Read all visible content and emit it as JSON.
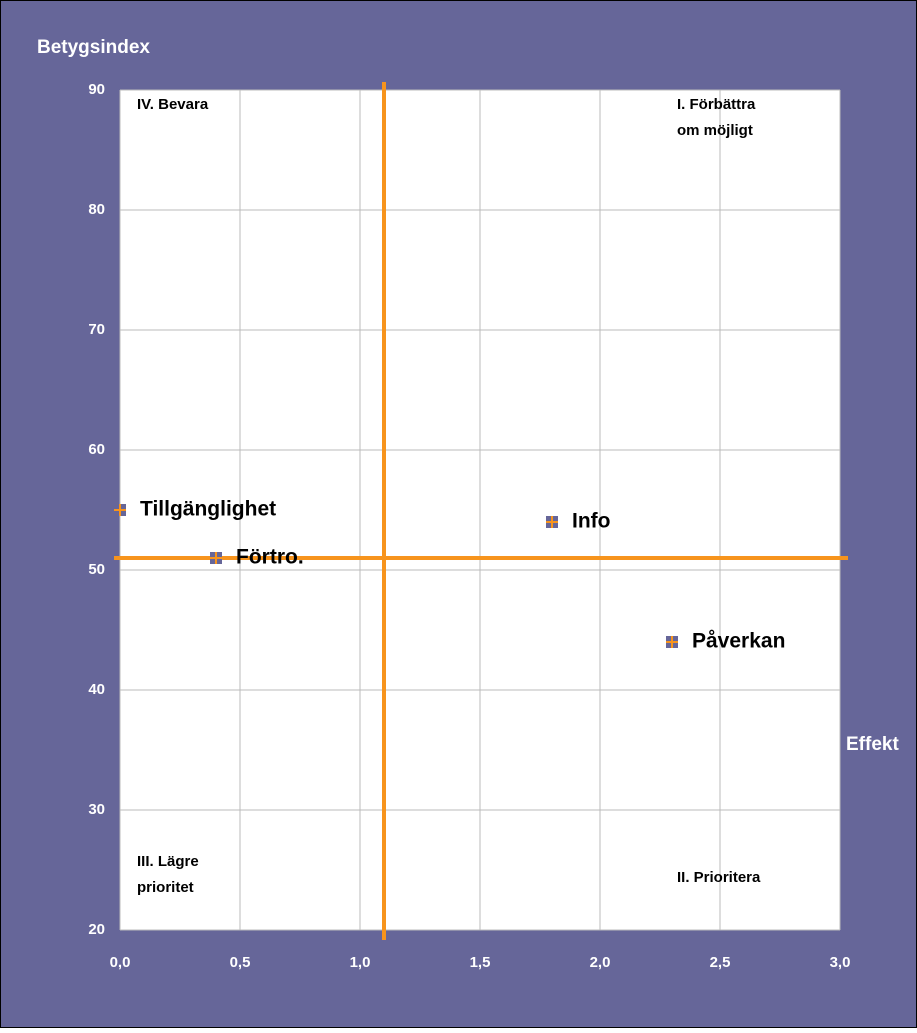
{
  "chart_data": {
    "type": "scatter",
    "y_label": "Betygsindex",
    "x_label": "Effekt",
    "x": [
      0,
      0.4,
      1.8,
      2.3
    ],
    "values": [
      55,
      51,
      54,
      44
    ],
    "point_labels": [
      "Tillgänglighet",
      "Förtro.",
      "Info",
      "Påverkan"
    ],
    "color": "#666699",
    "marker_cross_color": "#f7941d",
    "xlim": [
      0,
      3
    ],
    "ylim": [
      20,
      90
    ],
    "xticks": [
      {
        "value": 0,
        "label": "0,0"
      },
      {
        "value": 0.5,
        "label": "0,5"
      },
      {
        "value": 1,
        "label": "1,0"
      },
      {
        "value": 1.5,
        "label": "1,5"
      },
      {
        "value": 2,
        "label": "2,0"
      },
      {
        "value": 2.5,
        "label": "2,5"
      },
      {
        "value": 3,
        "label": "3,0"
      }
    ],
    "yticks": [
      20,
      30,
      40,
      50,
      60,
      70,
      80,
      90
    ],
    "grid": true,
    "reference_lines": {
      "x": 1.1,
      "y": 51,
      "color": "#f7941d"
    },
    "annotations": [
      [
        "IV. Bevara"
      ],
      [
        "I. Förbättra",
        "om möjligt"
      ],
      [
        "III. Lägre",
        "prioritet"
      ],
      [
        "II. Prioritera"
      ]
    ]
  }
}
